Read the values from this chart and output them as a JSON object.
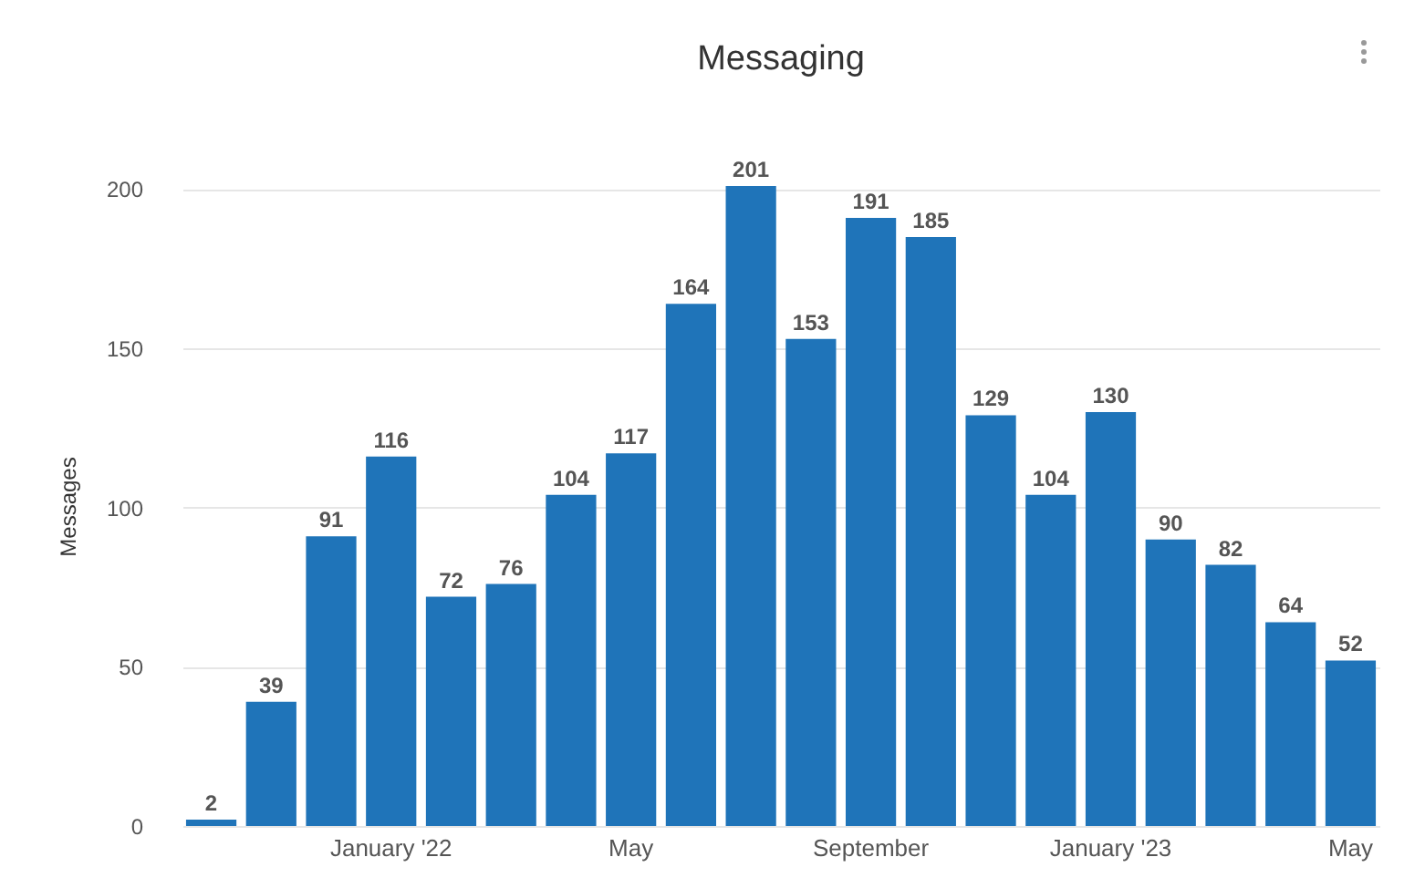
{
  "chart_data": {
    "type": "bar",
    "title": "Messaging",
    "ylabel": "Messages",
    "categories": [
      null,
      null,
      null,
      "January '22",
      null,
      null,
      null,
      "May",
      null,
      null,
      null,
      "September",
      null,
      null,
      null,
      "January '23",
      null,
      null,
      null,
      "May"
    ],
    "values": [
      2,
      39,
      91,
      116,
      72,
      76,
      104,
      117,
      164,
      201,
      153,
      191,
      185,
      129,
      104,
      130,
      90,
      82,
      64,
      52
    ],
    "color": "#1f74b9",
    "ylim": [
      0,
      201
    ],
    "yticks": [
      0,
      50,
      100,
      150,
      200
    ],
    "grid": "y",
    "data_labels": true
  }
}
